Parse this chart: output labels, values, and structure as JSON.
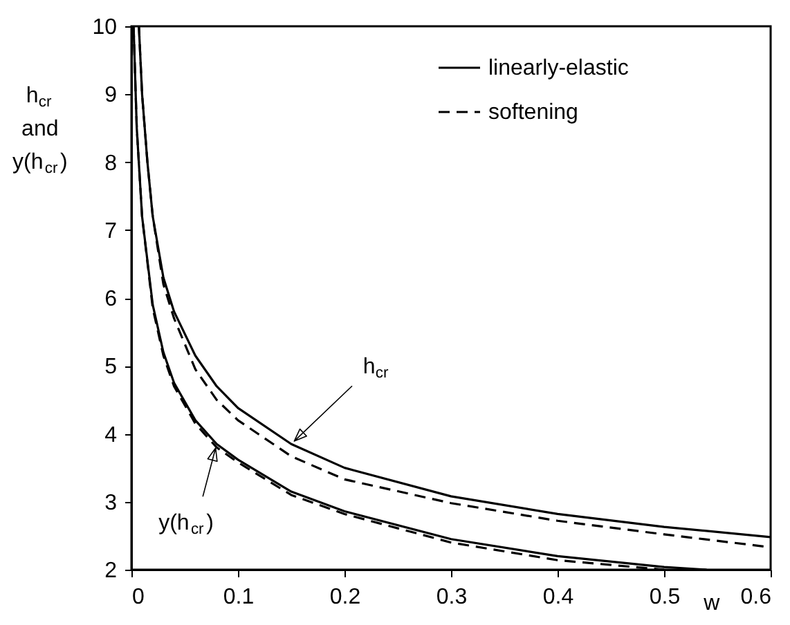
{
  "chart_data": {
    "type": "line",
    "xlabel": "w",
    "ylabel": "h$_{cr}$\nand\ny(h$_{cr}$)",
    "xlim": [
      0,
      0.6
    ],
    "ylim": [
      2,
      10
    ],
    "xticks": [
      0,
      0.1,
      0.2,
      0.3,
      0.4,
      0.5,
      0.6
    ],
    "yticks": [
      2,
      3,
      4,
      5,
      6,
      7,
      8,
      9,
      10
    ],
    "grid": false,
    "legend": "top right",
    "marker": "none",
    "series": [
      {
        "name": "linearly-elastic",
        "color": "#000000",
        "line_style": "solid",
        "x": [
          0.007,
          0.01,
          0.015,
          0.02,
          0.03,
          0.04,
          0.06,
          0.08,
          0.1,
          0.15,
          0.2,
          0.3,
          0.4,
          0.5,
          0.6
        ],
        "values": [
          10,
          9,
          8,
          7.2,
          6.3,
          5.8,
          5.15,
          4.7,
          4.38,
          3.85,
          3.5,
          3.08,
          2.82,
          2.63,
          2.48
        ]
      },
      {
        "name": "softening",
        "color": "#000000",
        "line_style": "dashed",
        "x": [
          0.007,
          0.01,
          0.015,
          0.02,
          0.03,
          0.04,
          0.06,
          0.08,
          0.1,
          0.15,
          0.2,
          0.3,
          0.4,
          0.5,
          0.6
        ],
        "values": [
          10,
          9,
          8,
          7.2,
          6.2,
          5.7,
          4.95,
          4.5,
          4.2,
          3.67,
          3.33,
          2.98,
          2.72,
          2.52,
          2.33
        ]
      },
      {
        "color": "#000000",
        "line_style": "solid",
        "x": [
          0.002,
          0.005,
          0.01,
          0.02,
          0.03,
          0.04,
          0.06,
          0.08,
          0.1,
          0.15,
          0.2,
          0.3,
          0.4,
          0.5,
          0.54
        ],
        "values": [
          10,
          8.5,
          7.2,
          5.9,
          5.2,
          4.75,
          4.2,
          3.85,
          3.62,
          3.15,
          2.86,
          2.45,
          2.2,
          2.04,
          2
        ]
      },
      {
        "color": "#000000",
        "line_style": "dashed",
        "x": [
          0.002,
          0.005,
          0.01,
          0.02,
          0.03,
          0.04,
          0.06,
          0.08,
          0.1,
          0.15,
          0.2,
          0.3,
          0.4,
          0.5
        ],
        "values": [
          10,
          8.5,
          7.2,
          5.85,
          5.15,
          4.7,
          4.15,
          3.8,
          3.58,
          3.1,
          2.82,
          2.4,
          2.14,
          2
        ]
      }
    ],
    "annotations": [
      {
        "text": "h$_{cr}$",
        "x": 0.15,
        "y": 3.85
      },
      {
        "text": "y(h$_{cr}$)",
        "x": 0.08,
        "y": 3.85
      }
    ]
  }
}
